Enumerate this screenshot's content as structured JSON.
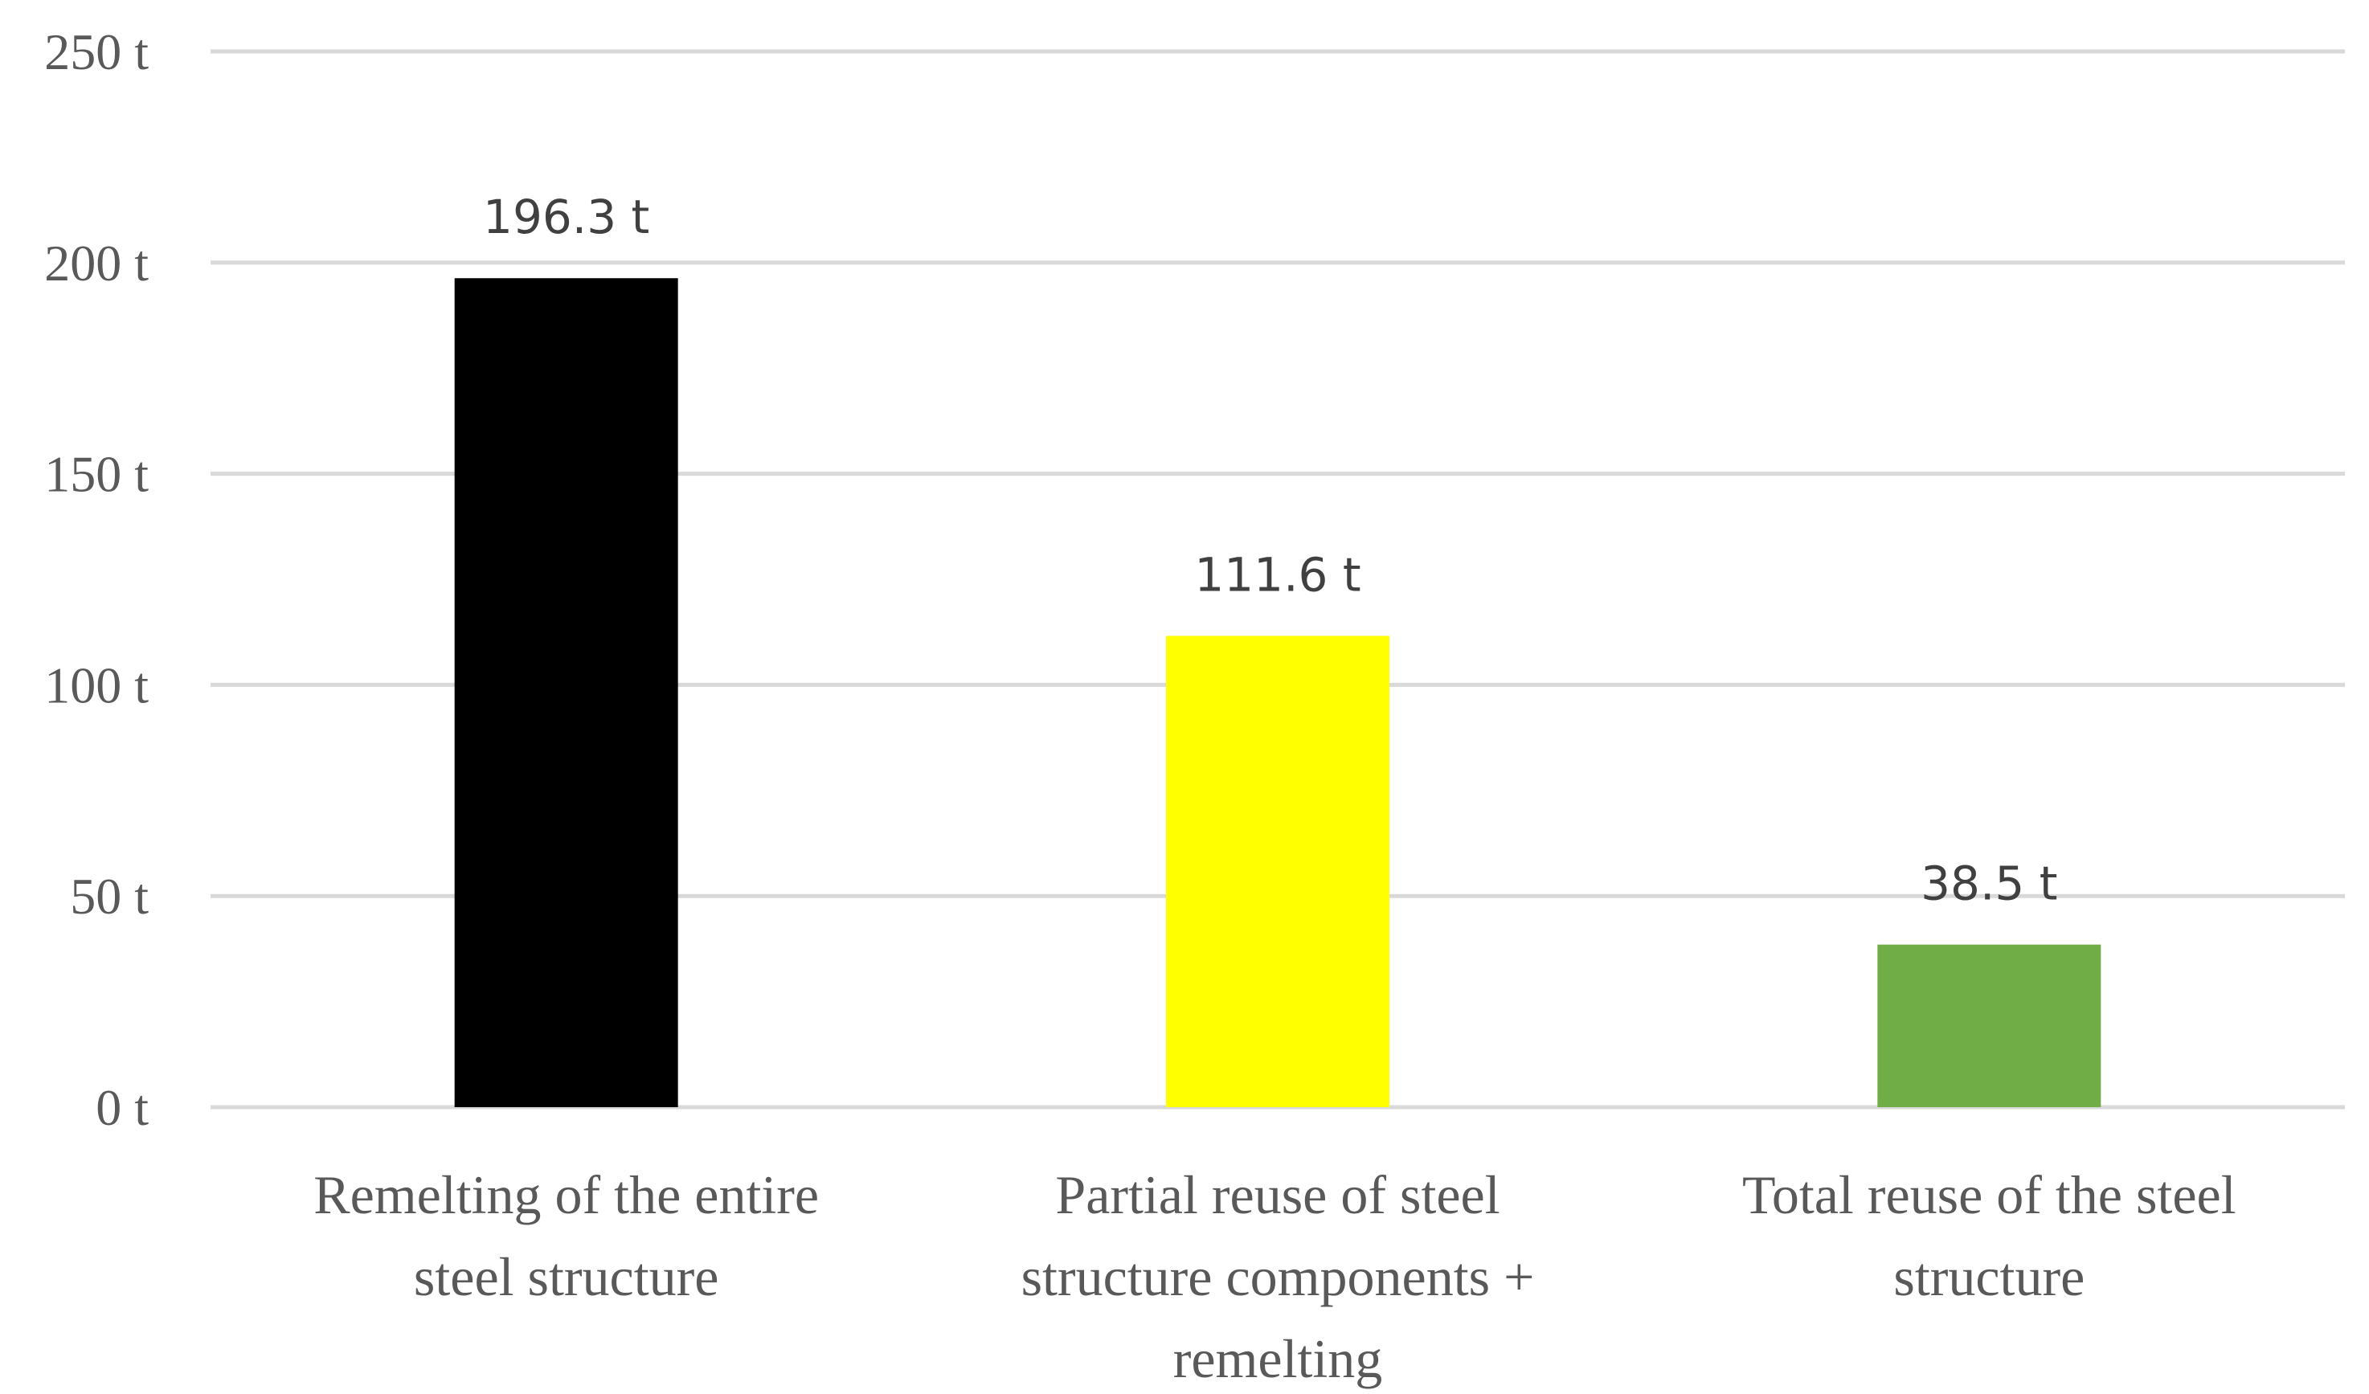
{
  "chart_data": {
    "type": "bar",
    "title": "",
    "xlabel": "",
    "ylabel": "",
    "unit_suffix": " t",
    "ylim": [
      0,
      250
    ],
    "y_ticks": [
      0,
      50,
      100,
      150,
      200,
      250
    ],
    "y_tick_labels": [
      "0 t",
      "50 t",
      "100 t",
      "150 t",
      "200 t",
      "250 t"
    ],
    "grid": true,
    "legend": "none",
    "categories": [
      [
        "Remelting of the entire",
        "steel structure"
      ],
      [
        "Partial reuse of steel",
        "structure components +",
        "remelting"
      ],
      [
        "Total reuse of the steel",
        "structure"
      ]
    ],
    "values": [
      196.3,
      111.6,
      38.5
    ],
    "data_labels": [
      "196.3 t",
      "111.6 t",
      "38.5 t"
    ],
    "colors": [
      "#000000",
      "#ffff00",
      "#70ad47"
    ]
  }
}
